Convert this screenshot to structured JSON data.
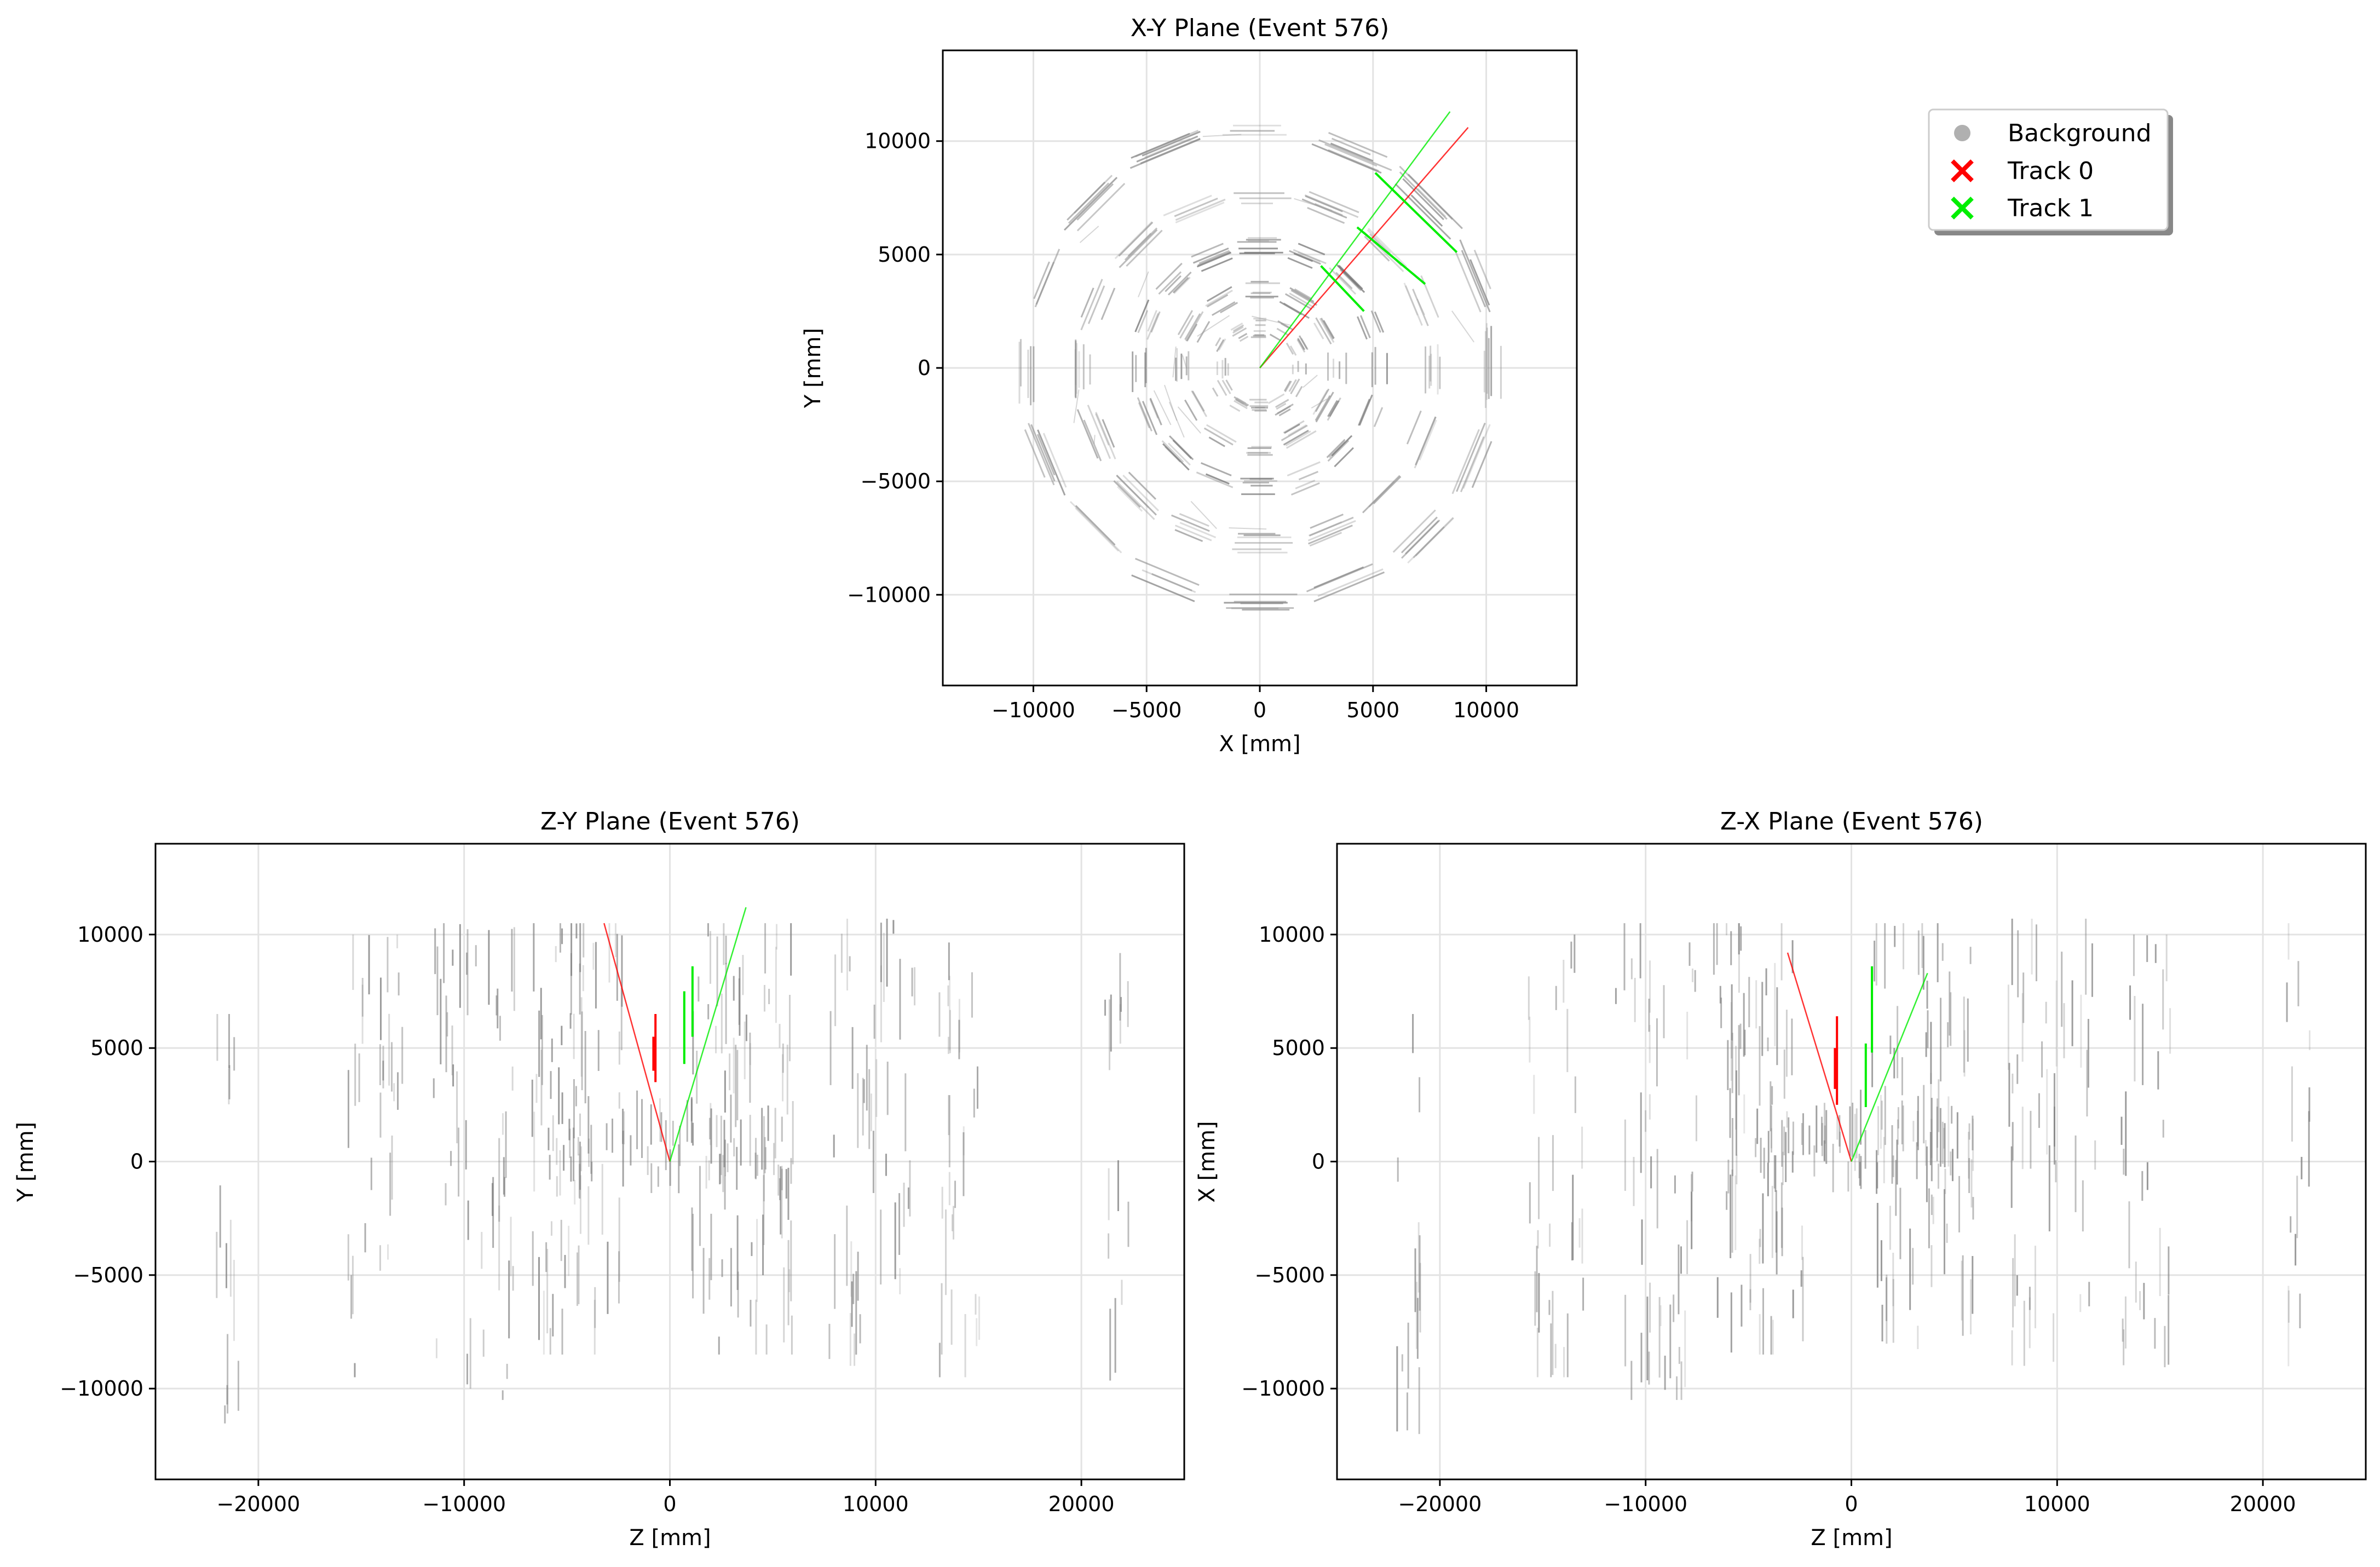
{
  "chart_data": [
    {
      "type": "scatter",
      "title": "X-Y Plane (Event 576)",
      "xlabel": "X [mm]",
      "ylabel": "Y [mm]",
      "xlim": [
        -14000,
        14000
      ],
      "ylim": [
        -14000,
        14000
      ],
      "xticks": [
        -10000,
        -5000,
        0,
        5000,
        10000
      ],
      "yticks": [
        -10000,
        -5000,
        0,
        5000,
        10000
      ],
      "xtick_labels": [
        "−10000",
        "−5000",
        "0",
        "5000",
        "10000"
      ],
      "ytick_labels": [
        "−10000",
        "−5000",
        "0",
        "5000",
        "10000"
      ],
      "grid": true,
      "tracks": [
        {
          "name": "Track 0",
          "line": [
            [
              0,
              0
            ],
            [
              9200,
              10600
            ]
          ]
        },
        {
          "name": "Track 1",
          "line": [
            [
              0,
              0
            ],
            [
              8400,
              11300
            ]
          ],
          "hits": [
            [
              [
                5100,
                8600
              ],
              [
                8700,
                5100
              ]
            ],
            [
              [
                4300,
                6200
              ],
              [
                7300,
                3700
              ]
            ],
            [
              [
                2700,
                4500
              ],
              [
                4600,
                2500
              ]
            ]
          ]
        }
      ],
      "background_layers": [
        {
          "radius": 1800,
          "sides": 12,
          "shade": "#999999"
        },
        {
          "radius": 3400,
          "sides": 12,
          "shade": "#888888"
        },
        {
          "radius": 5300,
          "sides": 16,
          "shade": "#777777"
        },
        {
          "radius": 7700,
          "sides": 16,
          "shade": "#999999"
        },
        {
          "radius": 10300,
          "sides": 16,
          "shade": "#888888"
        }
      ]
    },
    {
      "type": "scatter",
      "title": "Z-Y Plane (Event 576)",
      "xlabel": "Z [mm]",
      "ylabel": "Y [mm]",
      "xlim": [
        -25000,
        25000
      ],
      "ylim": [
        -14000,
        14000
      ],
      "xticks": [
        -20000,
        -10000,
        0,
        10000,
        20000
      ],
      "yticks": [
        -10000,
        -5000,
        0,
        5000,
        10000
      ],
      "xtick_labels": [
        "−20000",
        "−10000",
        "0",
        "10000",
        "20000"
      ],
      "ytick_labels": [
        "−10000",
        "−5000",
        "0",
        "5000",
        "10000"
      ],
      "grid": true,
      "tracks": [
        {
          "name": "Track 0",
          "line": [
            [
              0,
              0
            ],
            [
              -3200,
              10500
            ]
          ],
          "hits": [
            [
              [
                -700,
                3500
              ],
              [
                -700,
                6500
              ]
            ],
            [
              [
                -800,
                4000
              ],
              [
                -800,
                5500
              ]
            ]
          ]
        },
        {
          "name": "Track 1",
          "line": [
            [
              0,
              0
            ],
            [
              3700,
              11200
            ]
          ],
          "hits": [
            [
              [
                700,
                4300
              ],
              [
                700,
                7500
              ]
            ],
            [
              [
                1100,
                5500
              ],
              [
                1100,
                8600
              ]
            ]
          ]
        }
      ]
    },
    {
      "type": "scatter",
      "title": "Z-X Plane (Event 576)",
      "xlabel": "Z [mm]",
      "ylabel": "X [mm]",
      "xlim": [
        -25000,
        25000
      ],
      "ylim": [
        -14000,
        14000
      ],
      "xticks": [
        -20000,
        -10000,
        0,
        10000,
        20000
      ],
      "yticks": [
        -10000,
        -5000,
        0,
        5000,
        10000
      ],
      "xtick_labels": [
        "−20000",
        "−10000",
        "0",
        "10000",
        "20000"
      ],
      "ytick_labels": [
        "−10000",
        "−5000",
        "0",
        "5000",
        "10000"
      ],
      "grid": true,
      "tracks": [
        {
          "name": "Track 0",
          "line": [
            [
              0,
              0
            ],
            [
              -3100,
              9200
            ]
          ],
          "hits": [
            [
              [
                -700,
                2500
              ],
              [
                -700,
                6400
              ]
            ],
            [
              [
                -800,
                3200
              ],
              [
                -800,
                5000
              ]
            ]
          ]
        },
        {
          "name": "Track 1",
          "line": [
            [
              0,
              0
            ],
            [
              3700,
              8300
            ]
          ],
          "hits": [
            [
              [
                700,
                2400
              ],
              [
                700,
                5200
              ]
            ],
            [
              [
                1000,
                4800
              ],
              [
                1000,
                8600
              ]
            ]
          ]
        }
      ]
    }
  ],
  "legend": {
    "placement": "upper-right",
    "entries": [
      {
        "label": "Background",
        "marker": "circle",
        "color": "#b0b0b0"
      },
      {
        "label": "Track 0",
        "marker": "x",
        "color": "#ff0000"
      },
      {
        "label": "Track 1",
        "marker": "x",
        "color": "#00ee00"
      }
    ]
  },
  "colors": {
    "background": "#808080",
    "track0": "#ff0000",
    "track1": "#00ee00",
    "grid": "#e3e3e3"
  }
}
